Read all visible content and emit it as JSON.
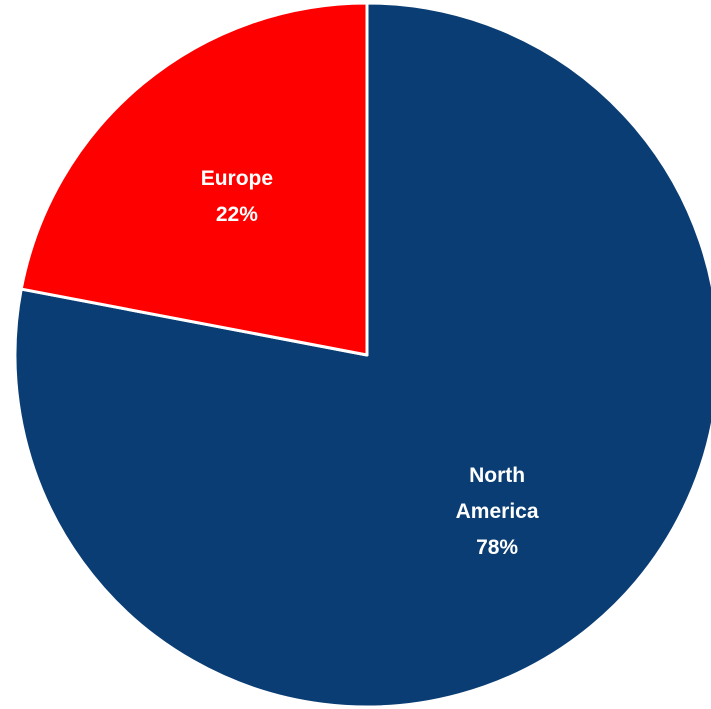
{
  "chart_data": {
    "type": "pie",
    "title": "",
    "slices": [
      {
        "label_lines": [
          "North",
          "America"
        ],
        "value": 78,
        "percent_label": "78%",
        "color": "#0a3d73"
      },
      {
        "label_lines": [
          "Europe"
        ],
        "value": 22,
        "percent_label": "22%",
        "color": "#ff0000"
      }
    ],
    "start_angle": "12 o'clock",
    "direction": "clockwise",
    "slice_border_color": "#ffffff",
    "legend": "none"
  }
}
